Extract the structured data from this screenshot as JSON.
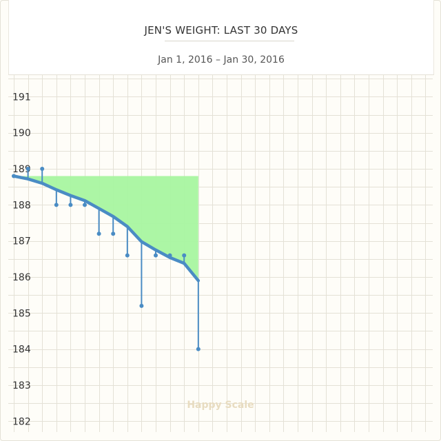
{
  "header": {
    "title": "JEN'S WEIGHT: LAST 30 DAYS",
    "subtitle": "Jan 1, 2016 – Jan 30, 2016"
  },
  "watermark": "Happy Scale",
  "colors": {
    "line": "#4a8cc4",
    "fill": "#a8f5a0",
    "grid": "#e4e1d6",
    "text": "#333333"
  },
  "chart_data": {
    "type": "line",
    "title": "JEN'S WEIGHT: LAST 30 DAYS",
    "subtitle": "Jan 1, 2016 – Jan 30, 2016",
    "xlabel": "",
    "ylabel": "",
    "ylim": [
      181.7,
      191.6
    ],
    "yticks": [
      182,
      183,
      184,
      185,
      186,
      187,
      188,
      189,
      190,
      191
    ],
    "grid": true,
    "x": [
      1,
      2,
      3,
      4,
      5,
      6,
      7,
      8,
      9,
      10,
      11,
      12,
      13,
      14
    ],
    "series": [
      {
        "kind": "scale_weight",
        "values": [
          188.8,
          189.0,
          189.0,
          188.0,
          188.0,
          188.0,
          187.2,
          187.2,
          186.6,
          185.2,
          186.6,
          186.6,
          186.6,
          184.0
        ]
      },
      {
        "kind": "trend",
        "values": [
          188.8,
          188.72,
          188.6,
          188.42,
          188.26,
          188.12,
          187.9,
          187.68,
          187.4,
          186.98,
          186.75,
          186.54,
          186.38,
          185.9
        ]
      }
    ],
    "goal_fill_top": 188.8
  }
}
